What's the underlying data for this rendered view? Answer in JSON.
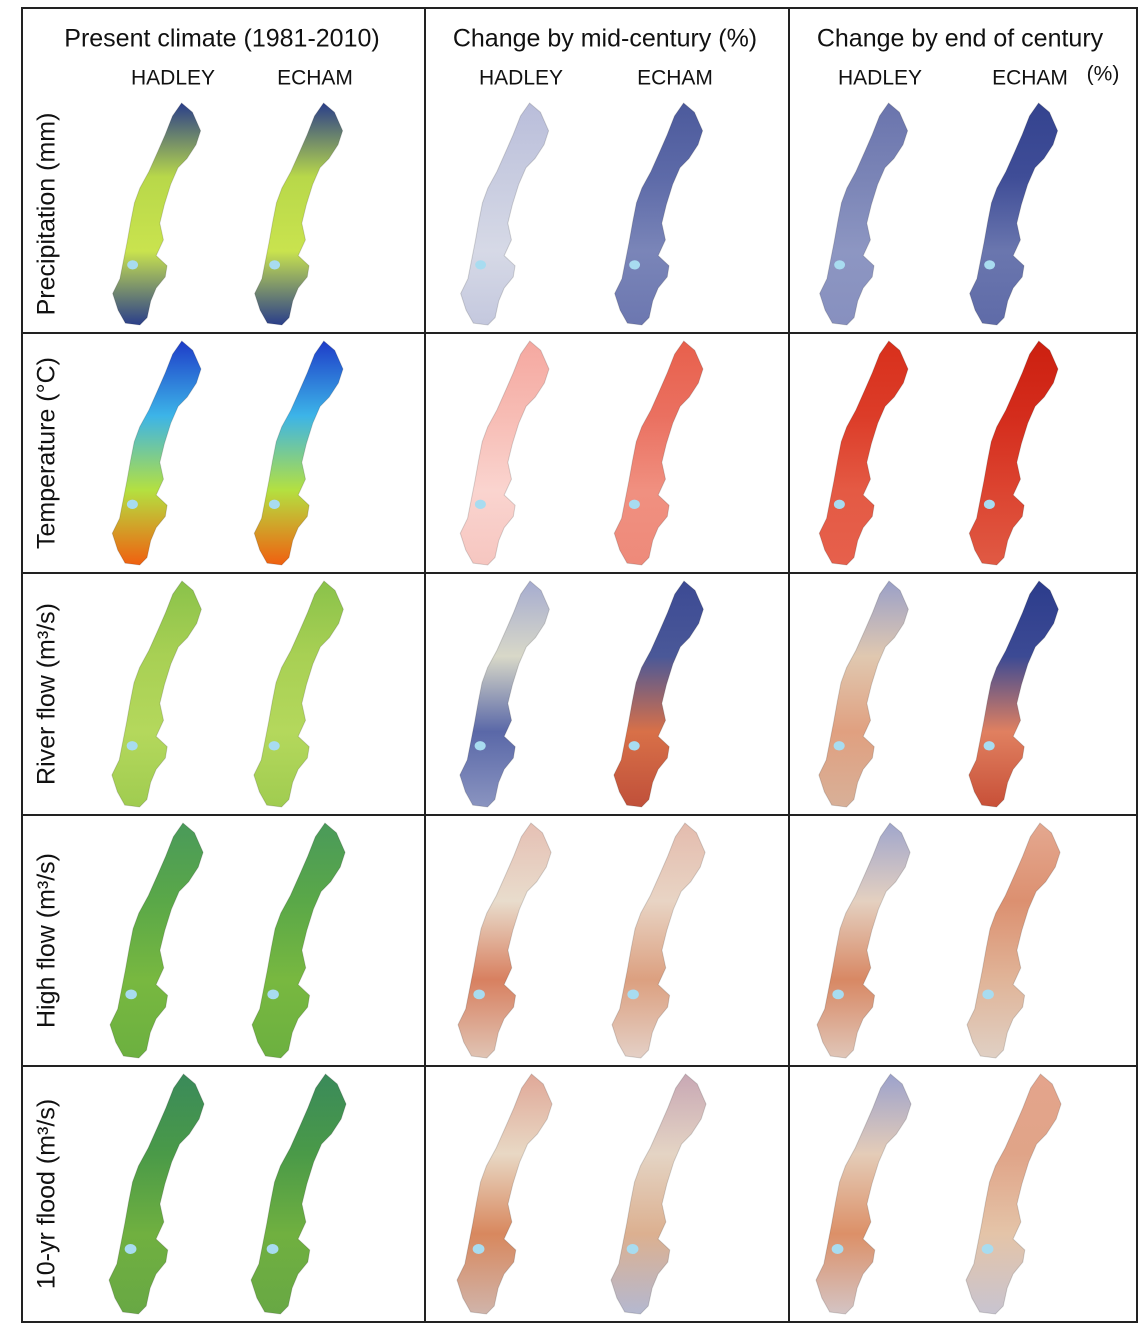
{
  "columns": [
    {
      "title": "Present climate (1981-2010)",
      "models": [
        "HADLEY",
        "ECHAM"
      ]
    },
    {
      "title": "Change by mid-century (%)",
      "models": [
        "HADLEY",
        "ECHAM"
      ]
    },
    {
      "title": "Change by end of century",
      "models": [
        "HADLEY",
        "ECHAM"
      ],
      "unit": "(%)"
    }
  ],
  "rows": [
    {
      "label": "Precipitation (mm)"
    },
    {
      "label": "Temperature (°C)"
    },
    {
      "label": "River flow (m³/s)"
    },
    {
      "label": "High flow (m³/s)"
    },
    {
      "label": "10-yr flood (m³/s)"
    }
  ]
}
